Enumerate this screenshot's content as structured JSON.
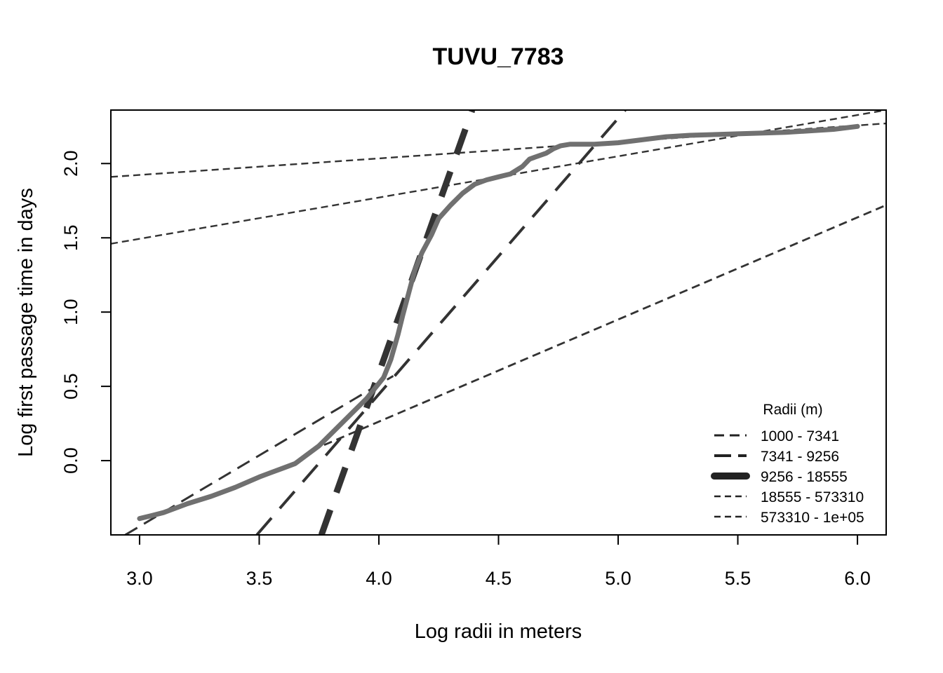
{
  "chart_data": {
    "type": "line",
    "title": "TUVU_7783",
    "xlabel": "Log radii in meters",
    "ylabel": "Log first passage time in days",
    "xlim": [
      2.88,
      6.12
    ],
    "ylim": [
      -0.5,
      2.36
    ],
    "x_ticks": [
      "3.0",
      "3.5",
      "4.0",
      "4.5",
      "5.0",
      "5.5",
      "6.0"
    ],
    "y_ticks": [
      "0.0",
      "0.5",
      "1.0",
      "1.5",
      "2.0"
    ],
    "grid": false,
    "legend": {
      "title": "Radii (m)",
      "position": "bottom-right",
      "entries": [
        "1000 - 7341",
        "7341 - 9256",
        "9256 - 18555",
        "18555 - 573310",
        "573310 - 1e+05"
      ]
    },
    "observed": {
      "color": "#707070",
      "x": [
        3.0,
        3.05,
        3.1,
        3.15,
        3.2,
        3.3,
        3.4,
        3.5,
        3.55,
        3.6,
        3.65,
        3.7,
        3.75,
        3.8,
        3.85,
        3.9,
        3.95,
        4.0,
        4.02,
        4.05,
        4.08,
        4.1,
        4.12,
        4.15,
        4.18,
        4.22,
        4.25,
        4.3,
        4.35,
        4.4,
        4.45,
        4.5,
        4.55,
        4.6,
        4.63,
        4.7,
        4.73,
        4.76,
        4.8,
        4.9,
        5.0,
        5.05,
        5.1,
        5.2,
        5.3,
        5.5,
        5.7,
        5.9,
        6.0
      ],
      "y": [
        -0.39,
        -0.37,
        -0.35,
        -0.32,
        -0.29,
        -0.24,
        -0.18,
        -0.11,
        -0.08,
        -0.05,
        -0.02,
        0.04,
        0.1,
        0.18,
        0.26,
        0.34,
        0.42,
        0.52,
        0.56,
        0.68,
        0.85,
        0.98,
        1.1,
        1.28,
        1.4,
        1.52,
        1.63,
        1.72,
        1.8,
        1.86,
        1.89,
        1.91,
        1.93,
        1.98,
        2.03,
        2.07,
        2.1,
        2.12,
        2.13,
        2.13,
        2.14,
        2.15,
        2.16,
        2.18,
        2.19,
        2.2,
        2.21,
        2.23,
        2.25
      ]
    },
    "fits": [
      {
        "name": "1000 - 7341",
        "x": [
          2.94,
          4.06
        ],
        "y": [
          -0.5,
          0.57
        ],
        "color": "#333333",
        "dash": "20,11",
        "width": 3
      },
      {
        "name": "7341 - 9256",
        "x": [
          3.49,
          5.03
        ],
        "y": [
          -0.5,
          2.36
        ],
        "color": "#333333",
        "dash": "32,18",
        "width": 4
      },
      {
        "name": "9256 - 18555",
        "x": [
          3.76,
          4.39
        ],
        "y": [
          -0.5,
          2.36
        ],
        "color": "#333333",
        "dash": "38,26",
        "width": 9
      },
      {
        "name": "18555 - 573310",
        "x": [
          2.88,
          6.12
        ],
        "y": [
          1.46,
          2.36
        ],
        "color": "#333333",
        "dash": "10,6",
        "width": 2.4
      },
      {
        "name": "573310 - 1e+05",
        "x": [
          2.88,
          6.12
        ],
        "y": [
          1.91,
          2.27
        ],
        "color": "#333333",
        "dash": "10,6",
        "width": 2.4
      },
      {
        "name": "",
        "x": [
          3.72,
          6.12
        ],
        "y": [
          0.07,
          1.72
        ],
        "color": "#333333",
        "dash": "12,7",
        "width": 2.8
      }
    ]
  }
}
